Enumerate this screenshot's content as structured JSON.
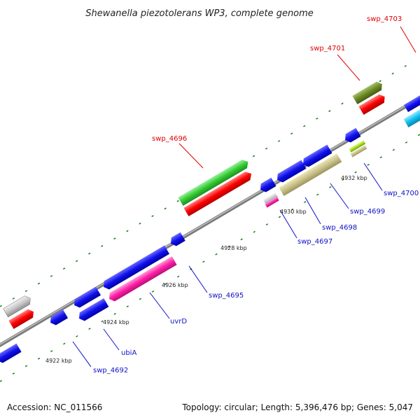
{
  "header": {
    "title": "Shewanella piezotolerans WP3, complete genome"
  },
  "footer": {
    "accession": "Accession: NC_011566",
    "summary": "Topology: circular; Length: 5,396,476 bp; Genes: 5,047"
  },
  "colors": {
    "backbone": "#888888",
    "tick": "#1a7a1a",
    "label_forward": "#e00000",
    "label_reverse": "#1010c8"
  },
  "kbp_markers": [
    "4922 kbp",
    "4924 kbp",
    "4926 kbp",
    "4928 kbp",
    "4930 kbp",
    "4932 kbp"
  ],
  "gene_labels": {
    "forward": [
      "swp_4696",
      "swp_4701",
      "swp_4703"
    ],
    "reverse": [
      "swp_4692",
      "ubiA",
      "uvrD",
      "swp_4695",
      "swp_4697",
      "swp_4698",
      "swp_4699",
      "swp_4700"
    ]
  }
}
